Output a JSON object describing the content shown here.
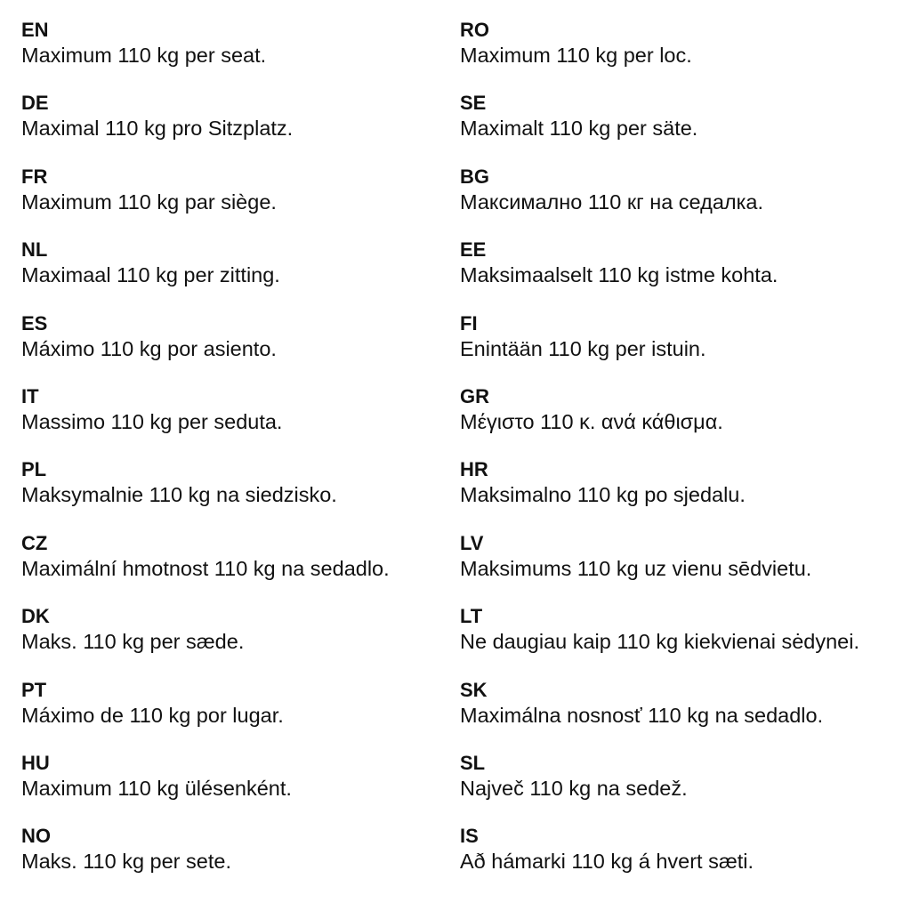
{
  "left": [
    {
      "code": "EN",
      "text": "Maximum 110 kg per seat."
    },
    {
      "code": "DE",
      "text": "Maximal 110 kg pro Sitzplatz."
    },
    {
      "code": "FR",
      "text": "Maximum 110 kg par siège."
    },
    {
      "code": "NL",
      "text": "Maximaal 110 kg per zitting."
    },
    {
      "code": "ES",
      "text": "Máximo 110 kg por asiento."
    },
    {
      "code": "IT",
      "text": "Massimo 110 kg per seduta."
    },
    {
      "code": "PL",
      "text": "Maksymalnie 110 kg na siedzisko."
    },
    {
      "code": "CZ",
      "text": "Maximální hmotnost 110 kg na sedadlo."
    },
    {
      "code": "DK",
      "text": "Maks. 110 kg per sæde."
    },
    {
      "code": "PT",
      "text": "Máximo de 110 kg por lugar."
    },
    {
      "code": "HU",
      "text": "Maximum 110 kg ülésenként."
    },
    {
      "code": "NO",
      "text": "Maks. 110 kg per sete."
    }
  ],
  "right": [
    {
      "code": "RO",
      "text": "Maximum 110 kg per loc."
    },
    {
      "code": "SE",
      "text": "Maximalt 110 kg per säte."
    },
    {
      "code": "BG",
      "text": "Максимално 110 кг на седалка."
    },
    {
      "code": "EE",
      "text": "Maksimaalselt 110 kg istme kohta."
    },
    {
      "code": "FI",
      "text": "Enintään 110 kg per istuin."
    },
    {
      "code": "GR",
      "text": "Μέγιστο 110 κ. ανά κάθισμα."
    },
    {
      "code": "HR",
      "text": "Maksimalno 110 kg po sjedalu."
    },
    {
      "code": "LV",
      "text": "Maksimums 110 kg uz vienu sēdvietu."
    },
    {
      "code": "LT",
      "text": "Ne daugiau kaip 110 kg kiekvienai sėdynei."
    },
    {
      "code": "SK",
      "text": "Maximálna nosnosť 110 kg na sedadlo."
    },
    {
      "code": "SL",
      "text": "Največ 110 kg na sedež."
    },
    {
      "code": "IS",
      "text": "Að hámarki 110 kg á hvert sæti."
    }
  ]
}
